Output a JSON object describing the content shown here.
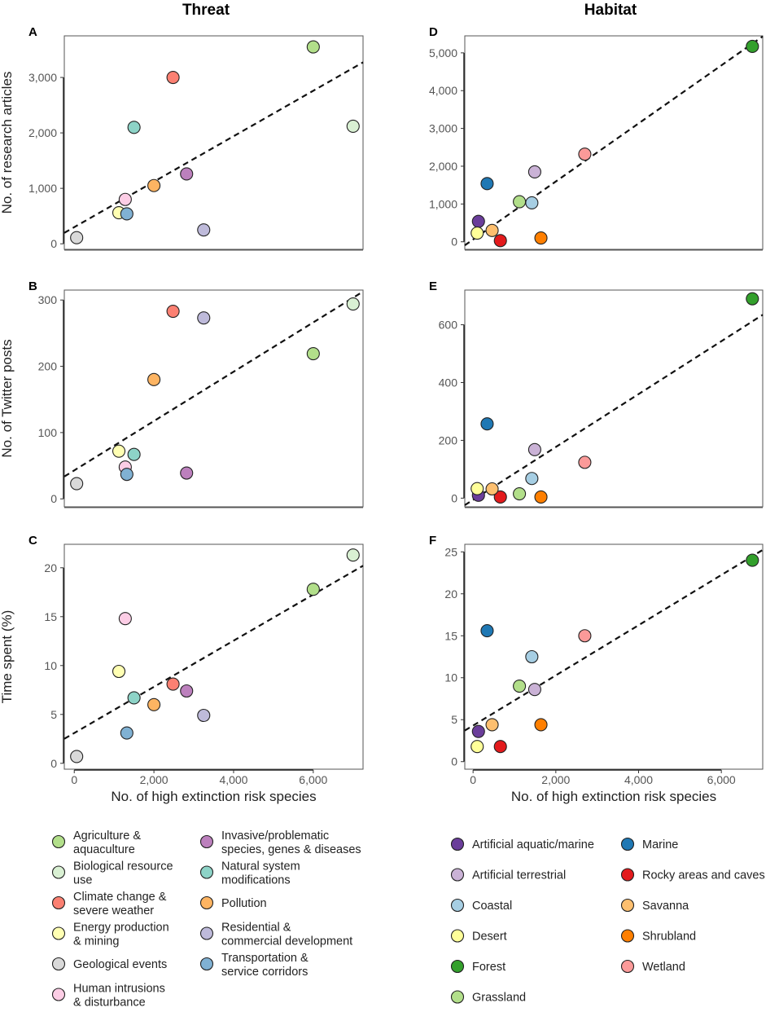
{
  "column_titles": {
    "left": "Threat",
    "right": "Habitat"
  },
  "colors": {
    "Agriculture & aquaculture": "#b2df8a",
    "Biological resource use": "#d9f0d3",
    "Climate change & severe weather": "#fb8072",
    "Energy production & mining": "#ffffb3",
    "Geological events": "#d9d9d9",
    "Human intrusions & disturbance": "#fccde5",
    "Invasive/problematic species, genes & diseases": "#bc80bd",
    "Natural system modifications": "#8dd3c7",
    "Pollution": "#fdb462",
    "Residential & commercial development": "#bebada",
    "Transportation & service corridors": "#80b1d3",
    "Artificial aquatic/marine": "#6a3d9a",
    "Artificial terrestrial": "#cab2d6",
    "Coastal": "#a6cee3",
    "Desert": "#ffff99",
    "Forest": "#33a02c",
    "Grassland": "#b2df8a",
    "Marine": "#1f78b4",
    "Rocky areas and caves": "#e31a1c",
    "Savanna": "#fdbf6f",
    "Shrubland": "#ff7f00",
    "Wetland": "#fb9a99"
  },
  "legends": {
    "threat": [
      {
        "label_lines": [
          "Agriculture &",
          "aquaculture"
        ],
        "key": "Agriculture & aquaculture"
      },
      {
        "label_lines": [
          "Biological resource",
          "use"
        ],
        "key": "Biological resource use"
      },
      {
        "label_lines": [
          "Climate change &",
          "severe weather"
        ],
        "key": "Climate change & severe weather"
      },
      {
        "label_lines": [
          "Energy production",
          "& mining"
        ],
        "key": "Energy production & mining"
      },
      {
        "label_lines": [
          "Geological events"
        ],
        "key": "Geological events"
      },
      {
        "label_lines": [
          "Human intrusions",
          "& disturbance"
        ],
        "key": "Human intrusions & disturbance"
      },
      {
        "label_lines": [
          "Invasive/problematic",
          "species, genes & diseases"
        ],
        "key": "Invasive/problematic species, genes & diseases"
      },
      {
        "label_lines": [
          "Natural system",
          "modifications"
        ],
        "key": "Natural system modifications"
      },
      {
        "label_lines": [
          "Pollution"
        ],
        "key": "Pollution"
      },
      {
        "label_lines": [
          "Residential &",
          "commercial development"
        ],
        "key": "Residential & commercial development"
      },
      {
        "label_lines": [
          "Transportation &",
          "service corridors"
        ],
        "key": "Transportation & service corridors"
      }
    ],
    "habitat": [
      {
        "label_lines": [
          "Artificial aquatic/marine"
        ],
        "key": "Artificial aquatic/marine"
      },
      {
        "label_lines": [
          "Artificial terrestrial"
        ],
        "key": "Artificial terrestrial"
      },
      {
        "label_lines": [
          "Coastal"
        ],
        "key": "Coastal"
      },
      {
        "label_lines": [
          "Desert"
        ],
        "key": "Desert"
      },
      {
        "label_lines": [
          "Forest"
        ],
        "key": "Forest"
      },
      {
        "label_lines": [
          "Grassland"
        ],
        "key": "Grassland"
      },
      {
        "label_lines": [
          "Marine"
        ],
        "key": "Marine"
      },
      {
        "label_lines": [
          "Rocky areas and caves"
        ],
        "key": "Rocky areas and caves"
      },
      {
        "label_lines": [
          "Savanna"
        ],
        "key": "Savanna"
      },
      {
        "label_lines": [
          "Shrubland"
        ],
        "key": "Shrubland"
      },
      {
        "label_lines": [
          "Wetland"
        ],
        "key": "Wetland"
      }
    ]
  },
  "chart_data": [
    {
      "id": "A",
      "type": "scatter",
      "letter": "A",
      "group": "threat",
      "xlabel": "",
      "ylabel": "No. of research articles",
      "xlim": [
        -250,
        7250
      ],
      "ylim": [
        -100,
        3750
      ],
      "xticks": [],
      "yticks": [
        0,
        1000,
        2000,
        3000
      ],
      "yticklabels": [
        "0",
        "1,000",
        "2,000",
        "3,000"
      ],
      "trendline": {
        "intercept": 300,
        "slope": 0.41
      },
      "points": [
        {
          "category": "Agriculture & aquaculture",
          "x": 6000,
          "y": 3550
        },
        {
          "category": "Biological resource use",
          "x": 7000,
          "y": 2120
        },
        {
          "category": "Climate change & severe weather",
          "x": 2480,
          "y": 3000
        },
        {
          "category": "Energy production & mining",
          "x": 1120,
          "y": 560
        },
        {
          "category": "Geological events",
          "x": 60,
          "y": 110
        },
        {
          "category": "Human intrusions & disturbance",
          "x": 1280,
          "y": 800
        },
        {
          "category": "Invasive/problematic species, genes & diseases",
          "x": 2820,
          "y": 1260
        },
        {
          "category": "Natural system modifications",
          "x": 1500,
          "y": 2100
        },
        {
          "category": "Pollution",
          "x": 2000,
          "y": 1050
        },
        {
          "category": "Residential & commercial development",
          "x": 3250,
          "y": 250
        },
        {
          "category": "Transportation & service corridors",
          "x": 1320,
          "y": 540
        }
      ]
    },
    {
      "id": "B",
      "type": "scatter",
      "letter": "B",
      "group": "threat",
      "xlabel": "",
      "ylabel": "No. of Twitter posts",
      "xlim": [
        -250,
        7250
      ],
      "ylim": [
        -12,
        315
      ],
      "xticks": [],
      "yticks": [
        0,
        100,
        200,
        300
      ],
      "yticklabels": [
        "0",
        "100",
        "200",
        "300"
      ],
      "trendline": {
        "intercept": 43,
        "slope": 0.0372
      },
      "points": [
        {
          "category": "Agriculture & aquaculture",
          "x": 6000,
          "y": 219
        },
        {
          "category": "Biological resource use",
          "x": 7000,
          "y": 294
        },
        {
          "category": "Climate change & severe weather",
          "x": 2480,
          "y": 283
        },
        {
          "category": "Energy production & mining",
          "x": 1120,
          "y": 72
        },
        {
          "category": "Geological events",
          "x": 60,
          "y": 23
        },
        {
          "category": "Human intrusions & disturbance",
          "x": 1280,
          "y": 48
        },
        {
          "category": "Invasive/problematic species, genes & diseases",
          "x": 2820,
          "y": 39
        },
        {
          "category": "Natural system modifications",
          "x": 1500,
          "y": 67
        },
        {
          "category": "Pollution",
          "x": 2000,
          "y": 180
        },
        {
          "category": "Residential & commercial development",
          "x": 3250,
          "y": 273
        },
        {
          "category": "Transportation & service corridors",
          "x": 1320,
          "y": 37
        }
      ]
    },
    {
      "id": "C",
      "type": "scatter",
      "letter": "C",
      "group": "threat",
      "xlabel": "No. of high extinction risk species",
      "ylabel": "Time spent (%)",
      "xlim": [
        -250,
        7250
      ],
      "ylim": [
        -0.6,
        22.4
      ],
      "xticks": [
        0,
        2000,
        4000,
        6000
      ],
      "xticklabels": [
        "0",
        "2,000",
        "4,000",
        "6,000"
      ],
      "yticks": [
        0,
        5,
        10,
        15,
        20
      ],
      "yticklabels": [
        "0",
        "5",
        "10",
        "15",
        "20"
      ],
      "trendline": {
        "intercept": 3.1,
        "slope": 0.00236
      },
      "points": [
        {
          "category": "Agriculture & aquaculture",
          "x": 6000,
          "y": 17.8
        },
        {
          "category": "Biological resource use",
          "x": 7000,
          "y": 21.3
        },
        {
          "category": "Climate change & severe weather",
          "x": 2480,
          "y": 8.1
        },
        {
          "category": "Energy production & mining",
          "x": 1120,
          "y": 9.4
        },
        {
          "category": "Geological events",
          "x": 60,
          "y": 0.7
        },
        {
          "category": "Human intrusions & disturbance",
          "x": 1280,
          "y": 14.8
        },
        {
          "category": "Invasive/problematic species, genes & diseases",
          "x": 2820,
          "y": 7.4
        },
        {
          "category": "Natural system modifications",
          "x": 1500,
          "y": 6.7
        },
        {
          "category": "Pollution",
          "x": 2000,
          "y": 6.0
        },
        {
          "category": "Residential & commercial development",
          "x": 3250,
          "y": 4.9
        },
        {
          "category": "Transportation & service corridors",
          "x": 1320,
          "y": 3.1
        }
      ]
    },
    {
      "id": "D",
      "type": "scatter",
      "letter": "D",
      "group": "habitat",
      "xlabel": "",
      "ylabel": "",
      "xlim": [
        -200,
        7000
      ],
      "ylim": [
        -200,
        5450
      ],
      "xticks": [],
      "yticks": [
        0,
        1000,
        2000,
        3000,
        4000,
        5000
      ],
      "yticklabels": [
        "0",
        "1,000",
        "2,000",
        "3,000",
        "4,000",
        "5,000"
      ],
      "trendline": {
        "intercept": 60,
        "slope": 0.768
      },
      "points": [
        {
          "category": "Artificial aquatic/marine",
          "x": 130,
          "y": 540
        },
        {
          "category": "Artificial terrestrial",
          "x": 1490,
          "y": 1850
        },
        {
          "category": "Coastal",
          "x": 1420,
          "y": 1030
        },
        {
          "category": "Desert",
          "x": 100,
          "y": 230
        },
        {
          "category": "Forest",
          "x": 6750,
          "y": 5170
        },
        {
          "category": "Grassland",
          "x": 1120,
          "y": 1060
        },
        {
          "category": "Marine",
          "x": 340,
          "y": 1540
        },
        {
          "category": "Rocky areas and caves",
          "x": 660,
          "y": 30
        },
        {
          "category": "Savanna",
          "x": 460,
          "y": 300
        },
        {
          "category": "Shrubland",
          "x": 1640,
          "y": 100
        },
        {
          "category": "Wetland",
          "x": 2700,
          "y": 2320
        }
      ]
    },
    {
      "id": "E",
      "type": "scatter",
      "letter": "E",
      "group": "habitat",
      "xlabel": "",
      "ylabel": "",
      "xlim": [
        -200,
        7000
      ],
      "ylim": [
        -30,
        720
      ],
      "xticks": [],
      "yticks": [
        0,
        200,
        400,
        600
      ],
      "yticklabels": [
        "0",
        "200",
        "400",
        "600"
      ],
      "trendline": {
        "intercept": -6,
        "slope": 0.0915
      },
      "points": [
        {
          "category": "Artificial aquatic/marine",
          "x": 130,
          "y": 10
        },
        {
          "category": "Artificial terrestrial",
          "x": 1490,
          "y": 168
        },
        {
          "category": "Coastal",
          "x": 1420,
          "y": 68
        },
        {
          "category": "Desert",
          "x": 100,
          "y": 33
        },
        {
          "category": "Forest",
          "x": 6750,
          "y": 690
        },
        {
          "category": "Grassland",
          "x": 1120,
          "y": 15
        },
        {
          "category": "Marine",
          "x": 340,
          "y": 257
        },
        {
          "category": "Rocky areas and caves",
          "x": 660,
          "y": 4
        },
        {
          "category": "Savanna",
          "x": 460,
          "y": 32
        },
        {
          "category": "Shrubland",
          "x": 1640,
          "y": 4
        },
        {
          "category": "Wetland",
          "x": 2700,
          "y": 124
        }
      ]
    },
    {
      "id": "F",
      "type": "scatter",
      "letter": "F",
      "group": "habitat",
      "xlabel": "No. of high extinction risk species",
      "ylabel": "",
      "xlim": [
        -200,
        7000
      ],
      "ylim": [
        -0.9,
        25.9
      ],
      "xticks": [
        0,
        2000,
        4000,
        6000
      ],
      "xticklabels": [
        "0",
        "2,000",
        "4,000",
        "6,000"
      ],
      "yticks": [
        0,
        5,
        10,
        15,
        20,
        25
      ],
      "yticklabels": [
        "0",
        "5",
        "10",
        "15",
        "20",
        "25"
      ],
      "trendline": {
        "intercept": 4.3,
        "slope": 0.00299
      },
      "points": [
        {
          "category": "Artificial aquatic/marine",
          "x": 130,
          "y": 3.6
        },
        {
          "category": "Artificial terrestrial",
          "x": 1490,
          "y": 8.6
        },
        {
          "category": "Coastal",
          "x": 1420,
          "y": 12.5
        },
        {
          "category": "Desert",
          "x": 100,
          "y": 1.8
        },
        {
          "category": "Forest",
          "x": 6750,
          "y": 24.0
        },
        {
          "category": "Grassland",
          "x": 1120,
          "y": 9.0
        },
        {
          "category": "Marine",
          "x": 340,
          "y": 15.6
        },
        {
          "category": "Rocky areas and caves",
          "x": 660,
          "y": 1.8
        },
        {
          "category": "Savanna",
          "x": 460,
          "y": 4.4
        },
        {
          "category": "Shrubland",
          "x": 1640,
          "y": 4.4
        },
        {
          "category": "Wetland",
          "x": 2700,
          "y": 15.0
        }
      ]
    }
  ]
}
